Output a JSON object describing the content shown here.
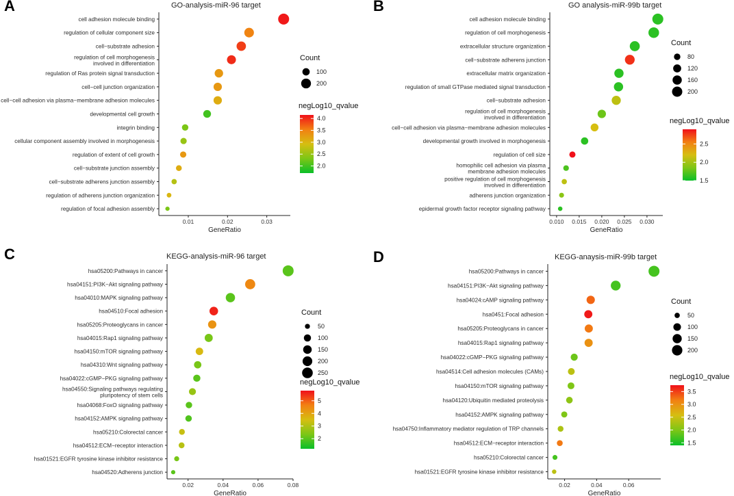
{
  "chart_data": [
    {
      "type": "scatter",
      "panel_label": "A",
      "title": "GO-analysis-miR-96 target",
      "xlabel": "GeneRatio",
      "xlim": [
        0.0025,
        0.036
      ],
      "xticks": [
        0.01,
        0.02,
        0.03
      ],
      "xtick_labels": [
        "0.01",
        "0.02",
        "0.03"
      ],
      "categories": [
        "cell adhesion molecule binding",
        "regulation of cellular component size",
        "cell−substrate adhesion",
        "regulation of cell morphogenesis involved in differentiation",
        "regulation of Ras protein signal transduction",
        "cell−cell junction organization",
        "cell−cell adhesion via plasma−membrane adhesion molecules",
        "developmental cell growth",
        "integrin binding",
        "cellular component assembly involved in morphogenesis",
        "regulation of extent of cell growth",
        "cell−substrate junction assembly",
        "cell−substrate adherens junction assembly",
        "regulation of adherens junction organization",
        "regulation of focal adhesion assembly"
      ],
      "x": [
        0.0343,
        0.0255,
        0.0235,
        0.021,
        0.0178,
        0.0175,
        0.0175,
        0.0148,
        0.0092,
        0.0088,
        0.0087,
        0.0076,
        0.0064,
        0.0051,
        0.0047
      ],
      "count": [
        260,
        190,
        180,
        160,
        140,
        135,
        135,
        115,
        75,
        70,
        70,
        60,
        50,
        40,
        35
      ],
      "color_value": [
        4.1,
        3.5,
        3.9,
        4.0,
        3.3,
        3.3,
        3.1,
        2.0,
        2.3,
        2.5,
        3.3,
        3.1,
        2.7,
        3.0,
        2.3
      ],
      "size_legend": {
        "title": "Count",
        "values": [
          100,
          200
        ],
        "labels": [
          "100",
          "200"
        ]
      },
      "color_legend": {
        "title": "negLog10_qvalue",
        "range": [
          1.7,
          4.15
        ],
        "ticks": [
          2.0,
          2.5,
          3.0,
          3.5,
          4.0
        ],
        "labels": [
          "2.0",
          "2.5",
          "3.0",
          "3.5",
          "4.0"
        ]
      }
    },
    {
      "type": "scatter",
      "panel_label": "B",
      "title": "GO analysis-miR-99b target",
      "xlabel": "GeneRatio",
      "xlim": [
        0.0085,
        0.0335
      ],
      "xticks": [
        0.01,
        0.015,
        0.02,
        0.025,
        0.03
      ],
      "xtick_labels": [
        "0.010",
        "0.015",
        "0.020",
        "0.025",
        "0.030"
      ],
      "categories": [
        "cell adhesion molecule binding",
        "regulation of cell morphogenesis",
        "extracellular structure organization",
        "cell−substrate adherens junction",
        "extracellular matrix organization",
        "regulation of small GTPase mediated signal transduction",
        "cell−substrate adhesion",
        "regulation of cell morphogenesis involved in differentiation",
        "cell−cell adhesion via plasma−membrane adhesion molecules",
        "developmental growth involved in morphogenesis",
        "regulation of cell size",
        "homophilic cell adhesion via plasma membrane adhesion molecules",
        "positive regulation of cell morphogenesis involved in differentiation",
        "adherens junction organization",
        "epidermal growth factor receptor signaling pathway"
      ],
      "x": [
        0.0324,
        0.0315,
        0.0273,
        0.0262,
        0.0238,
        0.0237,
        0.0232,
        0.02,
        0.0184,
        0.0162,
        0.0135,
        0.0121,
        0.0117,
        0.0111,
        0.0108
      ],
      "count": [
        230,
        215,
        190,
        180,
        160,
        160,
        155,
        130,
        115,
        100,
        75,
        65,
        60,
        55,
        50
      ],
      "color_value": [
        1.6,
        1.6,
        1.6,
        2.8,
        1.6,
        1.6,
        2.1,
        1.8,
        2.2,
        1.6,
        2.9,
        1.7,
        2.1,
        1.9,
        1.6
      ],
      "size_legend": {
        "title": "Count",
        "values": [
          80,
          120,
          160,
          200
        ],
        "labels": [
          "80",
          "120",
          "160",
          "200"
        ]
      },
      "color_legend": {
        "title": "negLog10_qvalue",
        "range": [
          1.5,
          2.9
        ],
        "ticks": [
          1.5,
          2.0,
          2.5
        ],
        "labels": [
          "1.5",
          "2.0",
          "2.5"
        ]
      }
    },
    {
      "type": "scatter",
      "panel_label": "C",
      "title": "KEGG-analysis-miR-96 target",
      "xlabel": "GeneRatio",
      "xlim": [
        0.008,
        0.08
      ],
      "xticks": [
        0.02,
        0.04,
        0.06,
        0.08
      ],
      "xtick_labels": [
        "0.02",
        "0.04",
        "0.06",
        "0.08"
      ],
      "categories": [
        "hsa05200:Pathways in cancer",
        "hsa04151:PI3K−Akt signaling pathway",
        "hsa04010:MAPK signaling pathway",
        "hsa04510:Focal adhesion",
        "hsa05205:Proteoglycans in cancer",
        "hsa04015:Rap1 signaling pathway",
        "hsa04150:mTOR signaling pathway",
        "hsa04310:Wnt signaling pathway",
        "hsa04022:cGMP−PKG signaling pathway",
        "hsa04550:Signaling pathways regulating pluripotency of stem cells",
        "hsa04068:FoxO signaling pathway",
        "hsa04152:AMPK signaling pathway",
        "hsa05210:Colorectal cancer",
        "hsa04512:ECM−receptor interaction",
        "hsa01521:EGFR tyrosine kinase inhibitor resistance",
        "hsa04520:Adherens junction"
      ],
      "x": [
        0.0772,
        0.0555,
        0.0442,
        0.0347,
        0.0338,
        0.0318,
        0.0265,
        0.0255,
        0.025,
        0.0225,
        0.0205,
        0.0203,
        0.0165,
        0.0163,
        0.0135,
        0.0115
      ],
      "count": [
        265,
        220,
        180,
        150,
        140,
        130,
        110,
        105,
        100,
        95,
        80,
        80,
        65,
        65,
        50,
        40
      ],
      "color_value": [
        2.0,
        4.5,
        2.0,
        5.6,
        4.3,
        2.3,
        3.6,
        2.3,
        2.0,
        2.7,
        2.0,
        1.9,
        3.3,
        3.1,
        2.3,
        2.0
      ],
      "size_legend": {
        "title": "Count",
        "values": [
          50,
          100,
          150,
          200,
          250
        ],
        "labels": [
          "50",
          "100",
          "150",
          "200",
          "250"
        ]
      },
      "color_legend": {
        "title": "negLog10_qvalue",
        "range": [
          1.2,
          5.8
        ],
        "ticks": [
          2,
          3,
          4,
          5
        ],
        "labels": [
          "2",
          "3",
          "4",
          "5"
        ]
      }
    },
    {
      "type": "scatter",
      "panel_label": "D",
      "title": "KEGG-anaysis-miR-99b target",
      "xlabel": "GeneRatio",
      "xlim": [
        0.0095,
        0.08
      ],
      "xticks": [
        0.02,
        0.04,
        0.06
      ],
      "xtick_labels": [
        "0.02",
        "0.04",
        "0.06"
      ],
      "categories": [
        "hsa05200:Pathways in cancer",
        "hsa04151:PI3K−Akt signaling pathway",
        "hsa04024:cAMP signaling pathway",
        "hsa0451:Focal adhesion",
        "hsa05205:Proteoglycans in cancer",
        "hsa04015:Rap1 signaling pathway",
        "hsa04022:cGMP−PKG signaling pathway",
        "hsa04514:Cell adhesion molecules (CAMs)",
        "hsa04150:mTOR signaling pathway",
        "hsa04120:Ubiquitin mediated proteolysis",
        "hsa04152:AMPK signaling pathway",
        "hsa04750:Inflammatory mediator regulation of TRP channels",
        "hsa04512:ECM−receptor interaction",
        "hsa05210:Colorectal cancer",
        "hsa01521:EGFR tyrosine kinase inhibitor resistance"
      ],
      "x": [
        0.0758,
        0.0519,
        0.0363,
        0.0348,
        0.0351,
        0.035,
        0.026,
        0.0242,
        0.024,
        0.023,
        0.0198,
        0.0175,
        0.017,
        0.014,
        0.0135
      ],
      "count": [
        225,
        175,
        120,
        115,
        115,
        115,
        85,
        80,
        80,
        75,
        65,
        60,
        60,
        45,
        40
      ],
      "color_value": [
        1.7,
        1.7,
        3.3,
        3.7,
        3.2,
        3.0,
        1.9,
        2.4,
        2.0,
        2.1,
        2.0,
        2.3,
        3.2,
        1.7,
        2.4
      ],
      "size_legend": {
        "title": "Count",
        "values": [
          50,
          100,
          150,
          200
        ],
        "labels": [
          "50",
          "100",
          "150",
          "200"
        ]
      },
      "color_legend": {
        "title": "negLog10_qvalue",
        "range": [
          1.4,
          3.75
        ],
        "ticks": [
          1.5,
          2.0,
          2.5,
          3.0,
          3.5
        ],
        "labels": [
          "1.5",
          "2.0",
          "2.5",
          "3.0",
          "3.5"
        ]
      }
    }
  ]
}
